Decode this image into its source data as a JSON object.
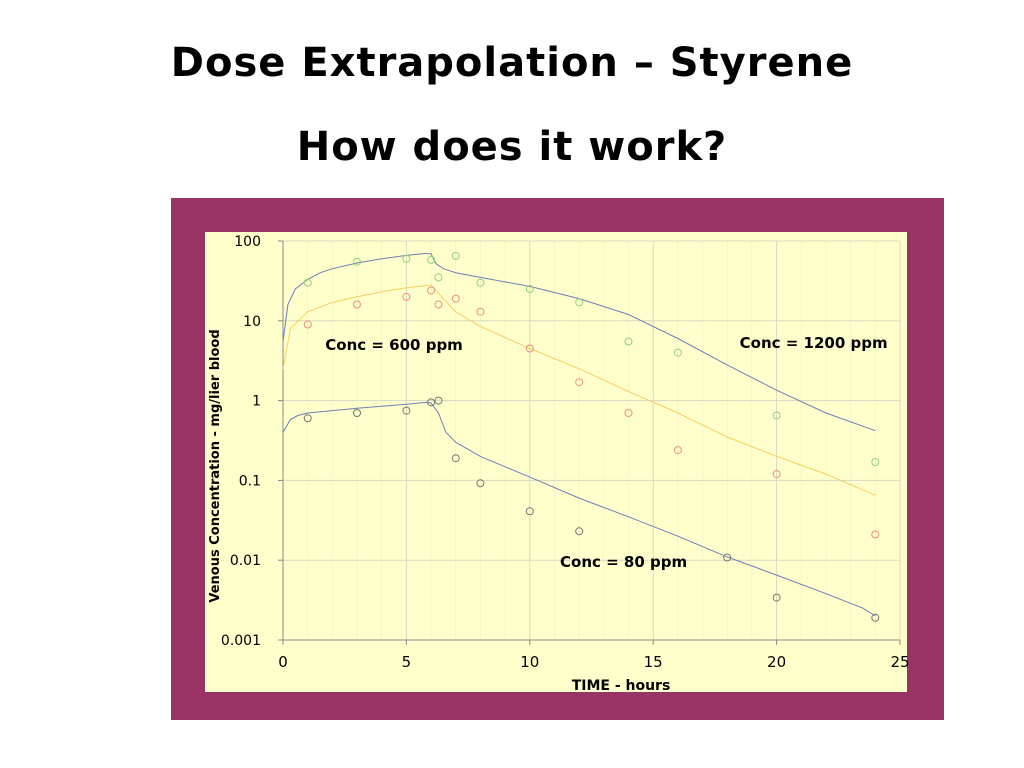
{
  "slide": {
    "title": "Dose Extrapolation – Styrene",
    "subtitle": "How does it work?"
  },
  "colors": {
    "frame": "#993366",
    "plot_background": "#FFFFCC",
    "grid": "#D6D9C6",
    "blue_series": "#6F7FB8",
    "yellow_series": "#F2D25C",
    "orange_points": "#E88F7C",
    "green_points": "#8FD07A",
    "gray_points": "#777777"
  },
  "chart_data": {
    "type": "scatter",
    "xlabel": "TIME - hours",
    "ylabel": "Venous Concentration - mg/lier blood",
    "xlim": [
      0,
      25
    ],
    "ylim": [
      0.001,
      100
    ],
    "yscale": "log",
    "grid": true,
    "x_ticks": [
      "0",
      "5",
      "10",
      "15",
      "20",
      "25"
    ],
    "y_ticks": [
      "100",
      "10",
      "1",
      "0.1",
      "0.01",
      "0.001"
    ],
    "annotations": [
      {
        "text": "Conc = 600 ppm",
        "x": 4.5,
        "y": 5
      },
      {
        "text": "Conc = 1200 ppm",
        "x": 21.5,
        "y": 5.3
      },
      {
        "text": "Conc = 80 ppm",
        "x": 13.8,
        "y": 0.0095
      }
    ],
    "series": [
      {
        "kind": "line",
        "color": "#6F7FB8",
        "x": [
          0,
          0.2,
          0.5,
          1,
          1.5,
          2,
          3,
          4,
          5,
          5.8,
          6,
          6.2,
          6.5,
          7,
          8,
          10,
          12,
          14,
          16,
          18,
          20,
          22,
          24
        ],
        "y": [
          5.5,
          16,
          25,
          33,
          40,
          45,
          53,
          60,
          66,
          70,
          69,
          52,
          45,
          40,
          35,
          27,
          19,
          12,
          6,
          2.8,
          1.35,
          0.7,
          0.42
        ]
      },
      {
        "kind": "line",
        "color": "#F2D25C",
        "x": [
          0,
          0.3,
          1,
          2,
          3,
          4,
          5,
          6,
          6.3,
          7,
          8,
          10,
          12,
          14,
          16,
          18,
          20,
          22,
          24
        ],
        "y": [
          2.5,
          8,
          13,
          17,
          20,
          23,
          26,
          28,
          22,
          13,
          8.5,
          4.5,
          2.5,
          1.3,
          0.7,
          0.35,
          0.2,
          0.12,
          0.065
        ]
      },
      {
        "kind": "line",
        "color": "#6F7FB8",
        "x": [
          0,
          0.3,
          0.6,
          1,
          2,
          3,
          4,
          5,
          5.8,
          6,
          6.3,
          6.6,
          7,
          8,
          10,
          12,
          14,
          16,
          18,
          20,
          22,
          23.5,
          24
        ],
        "y": [
          0.4,
          0.58,
          0.65,
          0.7,
          0.75,
          0.8,
          0.85,
          0.9,
          0.95,
          0.93,
          0.7,
          0.4,
          0.3,
          0.2,
          0.11,
          0.06,
          0.035,
          0.02,
          0.011,
          0.0065,
          0.0038,
          0.0025,
          0.002
        ]
      },
      {
        "kind": "points",
        "color": "#8FD07A",
        "x": [
          1,
          3,
          5,
          6,
          6.3,
          7,
          8,
          10,
          12,
          14,
          16,
          20,
          24
        ],
        "y": [
          30,
          55,
          60,
          58,
          35,
          65,
          30,
          25,
          17,
          5.5,
          4,
          0.65,
          0.17
        ]
      },
      {
        "kind": "points",
        "color": "#E88F7C",
        "x": [
          1,
          3,
          5,
          6,
          6.3,
          7,
          8,
          10,
          12,
          14,
          16,
          20,
          24
        ],
        "y": [
          9,
          16,
          20,
          24,
          16,
          19,
          13,
          4.5,
          1.7,
          0.7,
          0.24,
          0.12,
          0.021
        ]
      },
      {
        "kind": "points",
        "color": "#777777",
        "x": [
          1,
          3,
          5,
          6,
          6.3,
          7,
          8,
          10,
          12,
          18,
          20,
          24
        ],
        "y": [
          0.6,
          0.7,
          0.75,
          0.95,
          1.0,
          0.19,
          0.092,
          0.041,
          0.023,
          0.0108,
          0.0034,
          0.0019
        ]
      }
    ]
  }
}
